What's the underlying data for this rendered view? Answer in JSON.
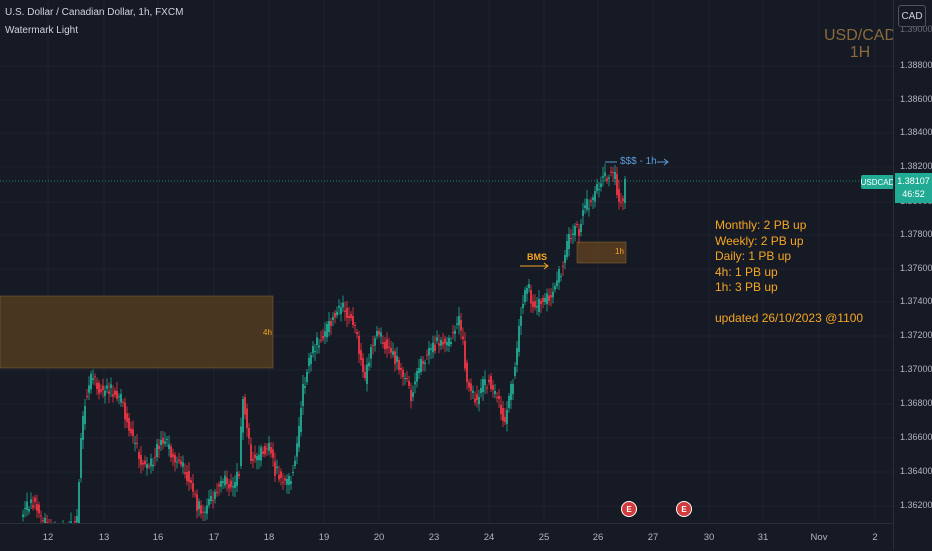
{
  "header": {
    "symbol_text": "U.S. Dollar / Canadian Dollar, 1h, FXCM",
    "indicator_text": "Watermark Light"
  },
  "watermark": {
    "line1": "USD/CAD",
    "line2": "1H"
  },
  "currency_button": "CAD",
  "y_axis": {
    "ticks": [
      "1.38800",
      "1.38600",
      "1.38400",
      "1.38200",
      "1.38000",
      "1.37800",
      "1.37600",
      "1.37400",
      "1.37200",
      "1.37000",
      "1.36800",
      "1.36600",
      "1.36400",
      "1.36200"
    ],
    "top_partial": "1.39000"
  },
  "x_axis": {
    "ticks": [
      "12",
      "13",
      "16",
      "17",
      "18",
      "19",
      "20",
      "23",
      "24",
      "25",
      "26",
      "27",
      "30",
      "31",
      "Nov",
      "2"
    ]
  },
  "price_badge": {
    "symbol": "USDCAD",
    "price": "1.38107",
    "countdown": "46:52"
  },
  "annotations": {
    "zone_4h": "4h",
    "zone_1h": "1h",
    "bms": "BMS",
    "sss": "$$$ - 1h"
  },
  "notes": {
    "lines": [
      "Monthly: 2 PB up",
      "Weekly: 2 PB up",
      "Daily: 1 PB up",
      "4h: 1 PB up",
      "1h: 3 PB up"
    ],
    "updated": "updated 26/10/2023 @1100"
  },
  "colors": {
    "bg": "#161a25",
    "up": "#22ab94",
    "down": "#f23645",
    "zone": "#f5a623",
    "accent": "#5b9bd5"
  },
  "icons": [
    "earnings-flag-icon",
    "earnings-flag-icon"
  ]
}
